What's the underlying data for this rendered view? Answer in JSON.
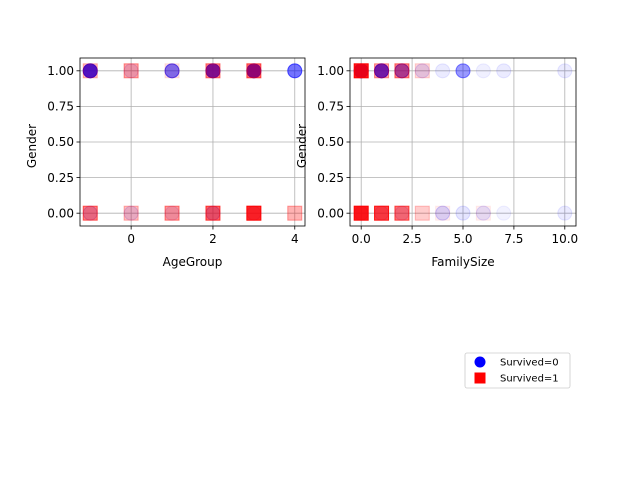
{
  "chart_data": [
    {
      "type": "scatter",
      "title": "",
      "xlabel": "AgeGroup",
      "ylabel": "Gender",
      "xlim": [
        -1.25,
        4.25
      ],
      "ylim": [
        -0.09,
        1.09
      ],
      "xticks": [
        0,
        2,
        4
      ],
      "xtick_labels": [
        "0",
        "2",
        "4"
      ],
      "yticks": [
        0.0,
        0.25,
        0.5,
        0.75,
        1.0
      ],
      "ytick_labels": [
        "0.00",
        "0.25",
        "0.50",
        "0.75",
        "1.00"
      ],
      "grid": true,
      "series": [
        {
          "name": "Survived=0",
          "marker": "circle",
          "color": "#0000ff",
          "points": [
            {
              "x": -1,
              "y": 1.0,
              "alpha": 0.9
            },
            {
              "x": 0,
              "y": 1.0,
              "alpha": 0.12
            },
            {
              "x": 1,
              "y": 1.0,
              "alpha": 0.55
            },
            {
              "x": 2,
              "y": 1.0,
              "alpha": 0.9
            },
            {
              "x": 3,
              "y": 1.0,
              "alpha": 0.95
            },
            {
              "x": 4,
              "y": 1.0,
              "alpha": 0.55
            },
            {
              "x": -1,
              "y": 0.0,
              "alpha": 0.2
            },
            {
              "x": 0,
              "y": 0.0,
              "alpha": 0.12
            },
            {
              "x": 1,
              "y": 0.0,
              "alpha": 0.1
            },
            {
              "x": 2,
              "y": 0.0,
              "alpha": 0.25
            },
            {
              "x": 3,
              "y": 0.0,
              "alpha": 0.2
            }
          ]
        },
        {
          "name": "Survived=1",
          "marker": "square",
          "color": "#ff0000",
          "points": [
            {
              "x": -1,
              "y": 1.0,
              "alpha": 0.25
            },
            {
              "x": 0,
              "y": 1.0,
              "alpha": 0.35
            },
            {
              "x": 1,
              "y": 1.0,
              "alpha": 0.1
            },
            {
              "x": 2,
              "y": 1.0,
              "alpha": 0.45
            },
            {
              "x": 3,
              "y": 1.0,
              "alpha": 0.55
            },
            {
              "x": -1,
              "y": 0.0,
              "alpha": 0.5
            },
            {
              "x": 0,
              "y": 0.0,
              "alpha": 0.25
            },
            {
              "x": 1,
              "y": 0.0,
              "alpha": 0.4
            },
            {
              "x": 2,
              "y": 0.0,
              "alpha": 0.6
            },
            {
              "x": 3,
              "y": 0.0,
              "alpha": 0.85
            },
            {
              "x": 4,
              "y": 0.0,
              "alpha": 0.3
            }
          ]
        }
      ]
    },
    {
      "type": "scatter",
      "title": "",
      "xlabel": "FamilySize",
      "ylabel": "Gender",
      "xlim": [
        -0.55,
        10.55
      ],
      "ylim": [
        -0.09,
        1.09
      ],
      "xticks": [
        0,
        2.5,
        5,
        7.5,
        10
      ],
      "xtick_labels": [
        "0.0",
        "2.5",
        "5.0",
        "7.5",
        "10.0"
      ],
      "yticks": [
        0.0,
        0.25,
        0.5,
        0.75,
        1.0
      ],
      "ytick_labels": [
        "0.00",
        "0.25",
        "0.50",
        "0.75",
        "1.00"
      ],
      "grid": true,
      "series": [
        {
          "name": "Survived=0",
          "marker": "circle",
          "color": "#0000ff",
          "points": [
            {
              "x": 0,
              "y": 1.0,
              "alpha": 0.95
            },
            {
              "x": 1,
              "y": 1.0,
              "alpha": 0.85
            },
            {
              "x": 2,
              "y": 1.0,
              "alpha": 0.6
            },
            {
              "x": 3,
              "y": 1.0,
              "alpha": 0.12
            },
            {
              "x": 4,
              "y": 1.0,
              "alpha": 0.08
            },
            {
              "x": 5,
              "y": 1.0,
              "alpha": 0.4
            },
            {
              "x": 6,
              "y": 1.0,
              "alpha": 0.06
            },
            {
              "x": 7,
              "y": 1.0,
              "alpha": 0.08
            },
            {
              "x": 10,
              "y": 1.0,
              "alpha": 0.08
            },
            {
              "x": 0,
              "y": 0.0,
              "alpha": 0.2
            },
            {
              "x": 1,
              "y": 0.0,
              "alpha": 0.15
            },
            {
              "x": 2,
              "y": 0.0,
              "alpha": 0.12
            },
            {
              "x": 4,
              "y": 0.0,
              "alpha": 0.15
            },
            {
              "x": 5,
              "y": 0.0,
              "alpha": 0.1
            },
            {
              "x": 6,
              "y": 0.0,
              "alpha": 0.1
            },
            {
              "x": 7,
              "y": 0.0,
              "alpha": 0.05
            },
            {
              "x": 10,
              "y": 0.0,
              "alpha": 0.08
            }
          ]
        },
        {
          "name": "Survived=1",
          "marker": "square",
          "color": "#ff0000",
          "points": [
            {
              "x": 0,
              "y": 1.0,
              "alpha": 0.9
            },
            {
              "x": 1,
              "y": 1.0,
              "alpha": 0.35
            },
            {
              "x": 2,
              "y": 1.0,
              "alpha": 0.45
            },
            {
              "x": 3,
              "y": 1.0,
              "alpha": 0.15
            },
            {
              "x": 0,
              "y": 0.0,
              "alpha": 0.9
            },
            {
              "x": 1,
              "y": 0.0,
              "alpha": 0.75
            },
            {
              "x": 2,
              "y": 0.0,
              "alpha": 0.55
            },
            {
              "x": 3,
              "y": 0.0,
              "alpha": 0.2
            },
            {
              "x": 4,
              "y": 0.0,
              "alpha": 0.06
            },
            {
              "x": 6,
              "y": 0.0,
              "alpha": 0.06
            }
          ]
        }
      ]
    }
  ],
  "legend": {
    "placement": "lower-right",
    "entries": [
      {
        "label": "Survived=0",
        "marker": "circle",
        "color": "#0000ff"
      },
      {
        "label": "Survived=1",
        "marker": "square",
        "color": "#ff0000"
      }
    ]
  }
}
